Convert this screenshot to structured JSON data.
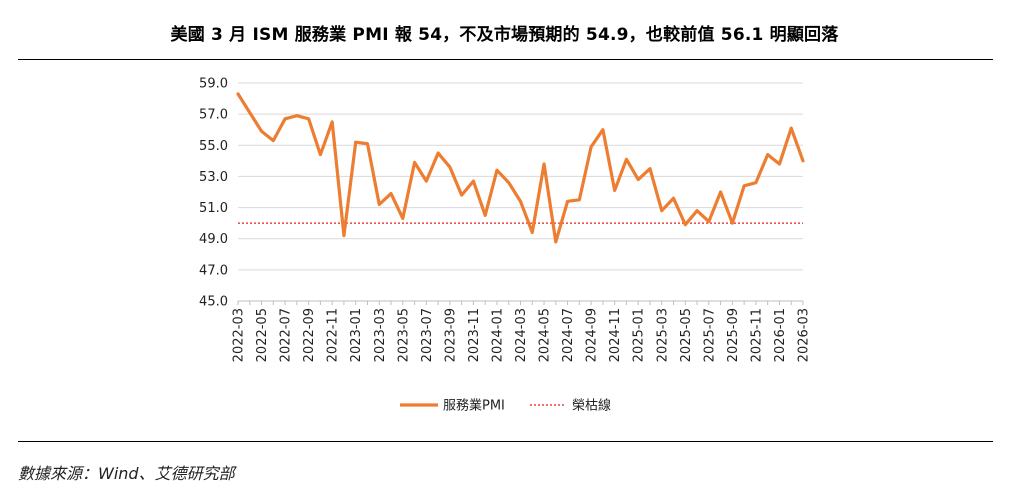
{
  "title": "美國 3 月 ISM 服務業 PMI 報 54，不及市場預期的 54.9，也較前值 56.1 明顯回落",
  "source": "數據來源：Wind、艾德研究部",
  "colors": {
    "series": "#ED7D31",
    "threshold": "#E0201B",
    "grid": "#D9D9D9"
  },
  "chart_data": {
    "type": "line",
    "title": "美國 3 月 ISM 服務業 PMI 報 54，不及市場預期的 54.9，也較前值 56.1 明顯回落",
    "xlabel": "",
    "ylabel": "",
    "ylim": [
      45.0,
      59.0
    ],
    "yticks": [
      "45.0",
      "47.0",
      "49.0",
      "51.0",
      "53.0",
      "55.0",
      "57.0",
      "59.0"
    ],
    "x": [
      "2022-03",
      "2022-04",
      "2022-05",
      "2022-06",
      "2022-07",
      "2022-08",
      "2022-09",
      "2022-10",
      "2022-11",
      "2022-12",
      "2023-01",
      "2023-02",
      "2023-03",
      "2023-04",
      "2023-05",
      "2023-06",
      "2023-07",
      "2023-08",
      "2023-09",
      "2023-10",
      "2023-11",
      "2023-12",
      "2024-01",
      "2024-02",
      "2024-03",
      "2024-04",
      "2024-05",
      "2024-06",
      "2024-07",
      "2024-08",
      "2024-09",
      "2024-10",
      "2024-11",
      "2024-12",
      "2025-01",
      "2025-02",
      "2025-03",
      "2025-04",
      "2025-05",
      "2025-06",
      "2025-07",
      "2025-08",
      "2025-09",
      "2025-10",
      "2025-11",
      "2025-12",
      "2026-01",
      "2026-02",
      "2026-03"
    ],
    "xtick_labels": [
      "2022-03",
      "2022-05",
      "2022-07",
      "2022-09",
      "2022-11",
      "2023-01",
      "2023-03",
      "2023-05",
      "2023-07",
      "2023-09",
      "2023-11",
      "2024-01",
      "2024-03",
      "2024-05",
      "2024-07",
      "2024-09",
      "2024-11",
      "2025-01",
      "2025-03",
      "2025-05",
      "2025-07",
      "2025-09",
      "2025-11",
      "2026-01",
      "2026-03"
    ],
    "series": [
      {
        "name": "服務業PMI",
        "values": [
          58.3,
          57.1,
          55.9,
          55.3,
          56.7,
          56.9,
          56.7,
          54.4,
          56.5,
          49.2,
          55.2,
          55.1,
          51.2,
          51.9,
          50.3,
          53.9,
          52.7,
          54.5,
          53.6,
          51.8,
          52.7,
          50.5,
          53.4,
          52.6,
          51.4,
          49.4,
          53.8,
          48.8,
          51.4,
          51.5,
          54.9,
          56.0,
          52.1,
          54.1,
          52.8,
          53.5,
          50.8,
          51.6,
          49.9,
          50.8,
          50.1,
          52.0,
          50.0,
          52.4,
          52.6,
          54.4,
          53.8,
          56.1,
          54.0
        ]
      },
      {
        "name": "榮枯線",
        "constant": 50.0
      }
    ],
    "legend": [
      "服務業PMI",
      "榮枯線"
    ],
    "legend_position": "bottom",
    "grid": true
  }
}
